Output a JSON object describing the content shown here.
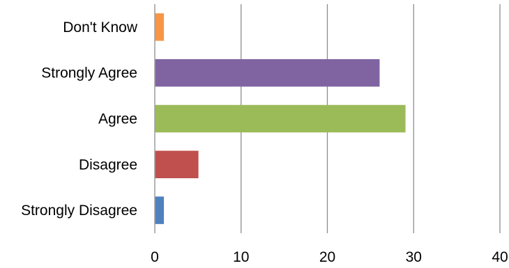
{
  "chart_data": {
    "type": "bar",
    "orientation": "horizontal",
    "categories": [
      "Strongly Disagree",
      "Disagree",
      "Agree",
      "Strongly Agree",
      "Don't Know"
    ],
    "values": [
      1,
      5,
      29,
      26,
      1
    ],
    "colors": [
      "#4f81bd",
      "#c0504d",
      "#9bbb59",
      "#8064a2",
      "#f79646"
    ],
    "x_ticks": [
      0,
      10,
      20,
      30,
      40
    ],
    "xlim": [
      0,
      40
    ],
    "title": "",
    "xlabel": "",
    "ylabel": "",
    "grid": "vertical",
    "legend": "none"
  }
}
